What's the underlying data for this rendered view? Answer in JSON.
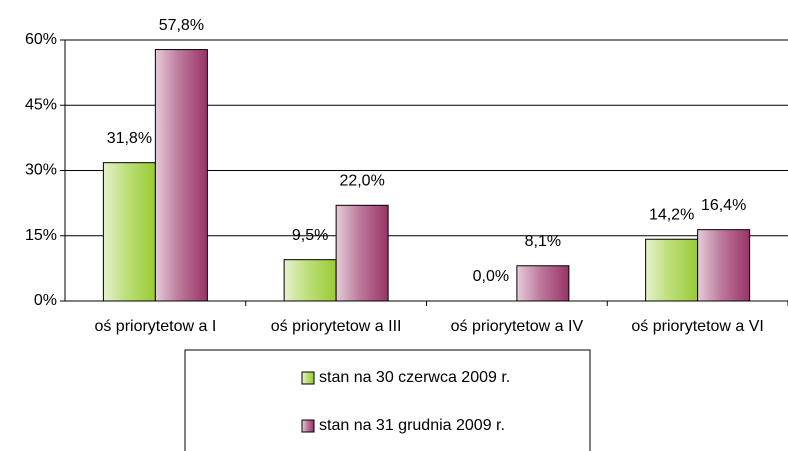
{
  "chart_data": {
    "type": "bar",
    "categories": [
      "oś priorytetow a I",
      "oś priorytetow a III",
      "oś priorytetow a IV",
      "oś priorytetow a VI"
    ],
    "series": [
      {
        "name": "stan na 30 czerwca 2009 r.",
        "color": "#99cc33",
        "values": [
          31.8,
          9.5,
          0.0,
          14.2
        ],
        "value_labels": [
          "31,8%",
          "9,5%",
          "0,0%",
          "14,2%"
        ]
      },
      {
        "name": "stan na 31 grudnia 2009 r.",
        "color": "#993366",
        "values": [
          57.8,
          22.0,
          8.1,
          16.4
        ],
        "value_labels": [
          "57,8%",
          "22,0%",
          "8,1%",
          "16,4%"
        ]
      }
    ],
    "ylim": [
      0,
      60
    ],
    "yticks": [
      {
        "value": 0,
        "label": "0%"
      },
      {
        "value": 15,
        "label": "15%"
      },
      {
        "value": 30,
        "label": "30%"
      },
      {
        "value": 45,
        "label": "45%"
      },
      {
        "value": 60,
        "label": "60%"
      }
    ],
    "grid": true
  }
}
